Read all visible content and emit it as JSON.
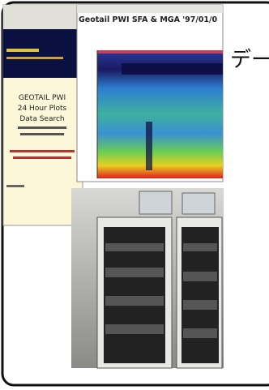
{
  "left_panel": {
    "heading": [
      "GEOTAIL PWI",
      "24 Hour Plots",
      "Data Search"
    ]
  },
  "spectrogram": {
    "title": "Geotail PWI SFA & MGA '97/01/0"
  },
  "slide_text": "デー"
}
